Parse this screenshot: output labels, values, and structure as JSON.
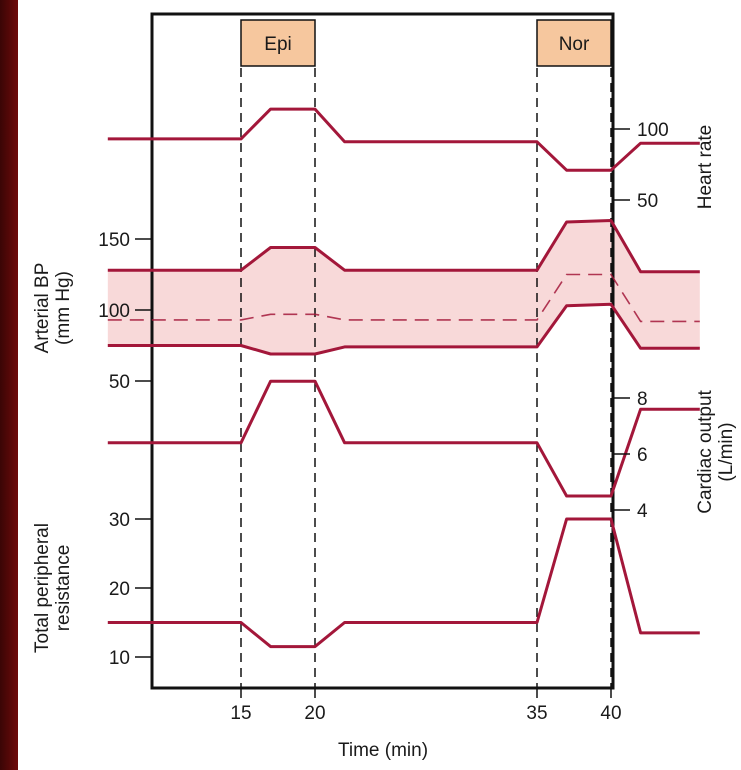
{
  "chart_data": {
    "type": "line",
    "xlabel": "Time (min)",
    "x_ticks": [
      15,
      20,
      35,
      40
    ],
    "x_range": [
      6,
      46
    ],
    "events": [
      {
        "label": "Epi",
        "start": 15,
        "end": 20
      },
      {
        "label": "Nor",
        "start": 35,
        "end": 40
      }
    ],
    "panels": [
      {
        "id": "heart-rate",
        "ylabel": "Heart rate",
        "axis_side": "right",
        "ticks": [
          50,
          100
        ],
        "range": [
          0,
          150
        ],
        "series": [
          {
            "x": [
              6,
              15,
              17,
              20,
              22,
              35,
              37,
              40,
              42,
              46
            ],
            "y": [
              93,
              93,
              114,
              114,
              91,
              91,
              71,
              71,
              90,
              90
            ]
          }
        ]
      },
      {
        "id": "arterial-bp",
        "ylabel": "Arterial BP\n(mm Hg)",
        "axis_side": "left",
        "ticks": [
          50,
          100,
          150
        ],
        "range": [
          50,
          150
        ],
        "systolic": {
          "x": [
            6,
            15,
            17,
            20,
            22,
            35,
            37,
            40,
            42,
            46
          ],
          "y": [
            128,
            128,
            144,
            144,
            128,
            128,
            162,
            163,
            127,
            127
          ]
        },
        "diastolic": {
          "x": [
            6,
            15,
            17,
            20,
            22,
            35,
            37,
            40,
            42,
            46
          ],
          "y": [
            75,
            75,
            69,
            69,
            74,
            74,
            103,
            104,
            73,
            73
          ]
        },
        "mean": {
          "x": [
            6,
            15,
            17,
            20,
            22,
            35,
            37,
            40,
            42,
            46
          ],
          "y": [
            93,
            93,
            97,
            97,
            93,
            93,
            125,
            125,
            92,
            92
          ]
        }
      },
      {
        "id": "cardiac-output",
        "ylabel": "Cardiac output\n(L/min)",
        "axis_side": "right",
        "ticks": [
          4,
          6,
          8
        ],
        "range": [
          4,
          8
        ],
        "series": [
          {
            "x": [
              6,
              15,
              17,
              20,
              22,
              35,
              37,
              40,
              42,
              46
            ],
            "y": [
              6.4,
              6.4,
              8.6,
              8.6,
              6.4,
              6.4,
              4.5,
              4.5,
              7.6,
              7.6
            ]
          }
        ]
      },
      {
        "id": "total-peripheral-resistance",
        "ylabel": "Total peripheral\nresistance",
        "axis_side": "left",
        "ticks": [
          10,
          20,
          30
        ],
        "range": [
          10,
          30
        ],
        "series": [
          {
            "x": [
              6,
              15,
              17,
              20,
              22,
              35,
              37,
              40,
              42,
              46
            ],
            "y": [
              15,
              15,
              11.5,
              11.5,
              15,
              15,
              30,
              30,
              13.5,
              13.5
            ]
          }
        ]
      }
    ],
    "colors": {
      "line": "#a3173a",
      "band": "#f8d9d9",
      "event_box": "#f6c79e"
    },
    "grid": false
  }
}
